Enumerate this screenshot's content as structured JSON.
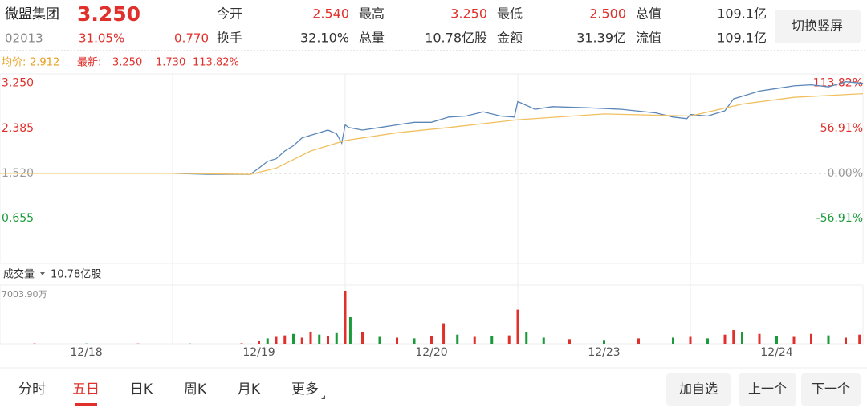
{
  "header": {
    "name": "微盟集团",
    "price": "3.250",
    "code": "02013",
    "change_pct": "31.05%",
    "change": "0.770",
    "fields": [
      [
        {
          "label": "今开",
          "value": "2.540"
        },
        {
          "label": "最高",
          "value": "3.250"
        },
        {
          "label": "最低",
          "value": "2.500"
        },
        {
          "label": "总值",
          "value": "109.1亿"
        }
      ],
      [
        {
          "label": "换手",
          "value": "32.10%"
        },
        {
          "label": "总量",
          "value": "10.78亿股"
        },
        {
          "label": "金额",
          "value": "31.39亿"
        },
        {
          "label": "流值",
          "value": "109.1亿"
        }
      ]
    ],
    "button": "切换竖屏"
  },
  "info": {
    "avg_label": "均价:",
    "avg": "2.912",
    "latest_label": "最新:",
    "latest": "3.250",
    "change": "1.730",
    "pct": "113.82%"
  },
  "chart_data": {
    "type": "line",
    "categories": [
      "12/18",
      "12/19",
      "12/20",
      "12/23",
      "12/24"
    ],
    "xlim": [
      0,
      5
    ],
    "ylim": [
      -0.21,
      3.43
    ],
    "yticks": [
      {
        "value": 3.25,
        "label": "3.250"
      },
      {
        "value": 2.385,
        "label": "2.385"
      },
      {
        "value": 1.52,
        "label": "1.520"
      },
      {
        "value": 0.655,
        "label": "0.655"
      }
    ],
    "y2lim": [
      -113.82,
      125.66
    ],
    "y2ticks": [
      {
        "value": 113.82,
        "label": "113.82%"
      },
      {
        "value": 56.91,
        "label": "56.91%"
      },
      {
        "value": 0,
        "label": "0.00%"
      },
      {
        "value": -56.91,
        "label": "-56.91%"
      }
    ],
    "base_tick": 2,
    "up_color": "#e0302b",
    "down_color": "#1a9a3a",
    "flat_color": "#999999",
    "series": [
      {
        "color": "#5a86b8",
        "x": [
          0,
          0.5,
          1.0,
          1.2,
          1.45,
          1.5,
          1.55,
          1.6,
          1.65,
          1.7,
          1.75,
          1.8,
          1.85,
          1.9,
          1.95,
          1.98,
          2.0,
          2.02,
          2.1,
          2.2,
          2.3,
          2.4,
          2.5,
          2.6,
          2.7,
          2.8,
          2.9,
          2.98,
          3.0,
          3.1,
          3.2,
          3.4,
          3.6,
          3.8,
          3.9,
          3.98,
          4.0,
          4.1,
          4.2,
          4.25,
          4.3,
          4.4,
          4.5,
          4.6,
          4.7,
          4.8,
          4.9,
          5.0
        ],
        "values": [
          1.52,
          1.52,
          1.52,
          1.5,
          1.5,
          1.62,
          1.75,
          1.8,
          1.95,
          2.05,
          2.2,
          2.25,
          2.3,
          2.35,
          2.28,
          2.1,
          2.45,
          2.4,
          2.35,
          2.4,
          2.45,
          2.5,
          2.5,
          2.6,
          2.62,
          2.7,
          2.62,
          2.6,
          2.9,
          2.75,
          2.8,
          2.78,
          2.75,
          2.68,
          2.6,
          2.57,
          2.65,
          2.62,
          2.72,
          2.95,
          3.0,
          3.1,
          3.15,
          3.2,
          3.22,
          3.18,
          3.28,
          3.25
        ]
      },
      {
        "color": "#f0c060",
        "x": [
          0,
          1.0,
          1.45,
          1.6,
          1.8,
          2.0,
          2.3,
          2.6,
          3.0,
          3.5,
          4.0,
          4.3,
          4.6,
          5.0
        ],
        "values": [
          1.52,
          1.52,
          1.5,
          1.62,
          1.95,
          2.15,
          2.3,
          2.4,
          2.55,
          2.66,
          2.62,
          2.85,
          2.98,
          3.05
        ]
      }
    ],
    "volume": {
      "label": "成交量",
      "total": "10.78亿股",
      "ylim": [
        0,
        7003.9
      ],
      "yticks": [
        {
          "value": 7003.9,
          "label": "7003.90万"
        }
      ],
      "x": [
        0.2,
        0.5,
        0.8,
        1.1,
        1.4,
        1.5,
        1.55,
        1.6,
        1.65,
        1.7,
        1.75,
        1.8,
        1.85,
        1.9,
        1.95,
        2.0,
        2.03,
        2.1,
        2.2,
        2.3,
        2.4,
        2.5,
        2.57,
        2.65,
        2.75,
        2.85,
        2.95,
        3.0,
        3.05,
        3.15,
        3.3,
        3.5,
        3.7,
        3.9,
        4.0,
        4.1,
        4.2,
        4.25,
        4.3,
        4.4,
        4.5,
        4.6,
        4.7,
        4.8,
        4.9,
        4.98
      ],
      "values": [
        40,
        30,
        30,
        30,
        60,
        400,
        700,
        900,
        1100,
        1300,
        800,
        1600,
        1200,
        1000,
        1400,
        7003.9,
        3500,
        1500,
        900,
        800,
        700,
        1000,
        2700,
        1200,
        900,
        1000,
        1100,
        4500,
        1500,
        800,
        600,
        500,
        700,
        800,
        900,
        700,
        1200,
        1800,
        1500,
        1300,
        1000,
        900,
        1300,
        1100,
        800,
        1200
      ],
      "up": [
        true,
        false,
        true,
        false,
        true,
        true,
        false,
        true,
        true,
        false,
        true,
        true,
        false,
        true,
        false,
        true,
        false,
        true,
        false,
        true,
        false,
        true,
        true,
        false,
        true,
        false,
        true,
        true,
        false,
        false,
        true,
        false,
        true,
        false,
        true,
        false,
        true,
        true,
        false,
        true,
        false,
        true,
        true,
        false,
        true,
        true
      ]
    }
  },
  "tabs": [
    "分时",
    "五日",
    "日K",
    "周K",
    "月K",
    "更多"
  ],
  "active_tab": 1,
  "buttons": [
    "加自选",
    "上一个",
    "下一个"
  ]
}
